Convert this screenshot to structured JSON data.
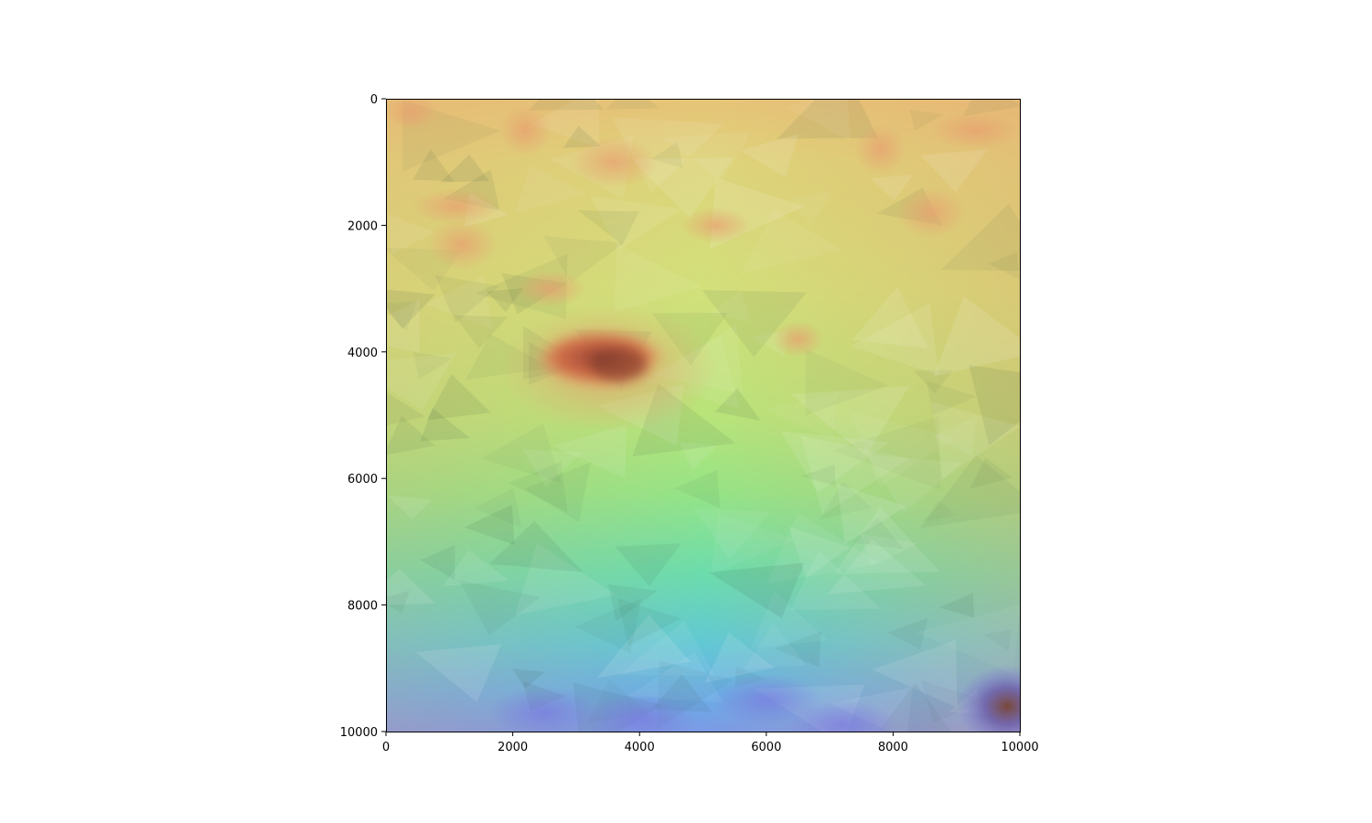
{
  "chart_data": {
    "type": "heatmap",
    "title": "",
    "xlabel": "",
    "ylabel": "",
    "xlim": [
      0,
      10000
    ],
    "ylim": [
      10000,
      0
    ],
    "y_axis_inverted": true,
    "xticks": [
      {
        "value": 0,
        "label": "0"
      },
      {
        "value": 2000,
        "label": "2000"
      },
      {
        "value": 4000,
        "label": "4000"
      },
      {
        "value": 6000,
        "label": "6000"
      },
      {
        "value": 8000,
        "label": "8000"
      },
      {
        "value": 10000,
        "label": "10000"
      }
    ],
    "yticks": [
      {
        "value": 0,
        "label": "0"
      },
      {
        "value": 2000,
        "label": "2000"
      },
      {
        "value": 4000,
        "label": "4000"
      },
      {
        "value": 6000,
        "label": "6000"
      },
      {
        "value": 8000,
        "label": "8000"
      },
      {
        "value": 10000,
        "label": "10000"
      }
    ],
    "colormap": "jet-like with hillshade (red high, blue low)",
    "grid": false,
    "colorbar": false,
    "features": [
      {
        "name": "peak",
        "x": 3600,
        "y": 4200,
        "level": 1.0
      },
      {
        "name": "low-corner",
        "x": 9800,
        "y": 9600,
        "level": 0.05
      }
    ],
    "colors": {
      "high": "#c95a3a",
      "upper_mid": "#e8b070",
      "mid": "#d8de78",
      "lower_mid": "#9ee87a",
      "low_mid": "#5fd8b0",
      "low": "#6ab0e8",
      "lowest": "#7a78e0",
      "peak_dark": "#8a4030"
    }
  }
}
